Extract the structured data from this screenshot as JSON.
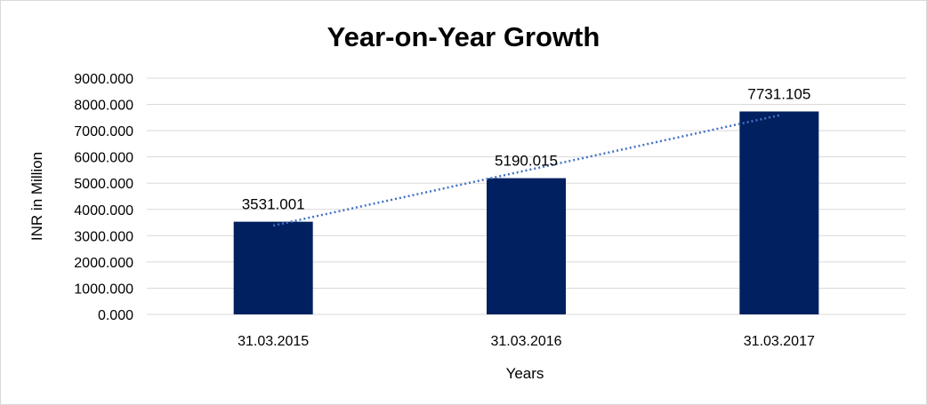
{
  "chart_data": {
    "type": "bar",
    "title": "Year-on-Year Growth",
    "xlabel": "Years",
    "ylabel": "INR in Million",
    "categories": [
      "31.03.2015",
      "31.03.2016",
      "31.03.2017"
    ],
    "values": [
      3531.001,
      5190.015,
      7731.105
    ],
    "value_labels": [
      "3531.001",
      "5190.015",
      "7731.105"
    ],
    "ylim": [
      0,
      9000
    ],
    "yticks": [
      0,
      1000,
      2000,
      3000,
      4000,
      5000,
      6000,
      7000,
      8000,
      9000
    ],
    "ytick_labels": [
      "0.000",
      "1000.000",
      "2000.000",
      "3000.000",
      "4000.000",
      "5000.000",
      "6000.000",
      "7000.000",
      "8000.000",
      "9000.000"
    ],
    "grid": true,
    "legend": "none",
    "trendline": {
      "type": "linear",
      "style": "dotted"
    },
    "colors": {
      "bar": "#002060",
      "trendline": "#4472c4",
      "grid": "#d9d9d9"
    }
  }
}
